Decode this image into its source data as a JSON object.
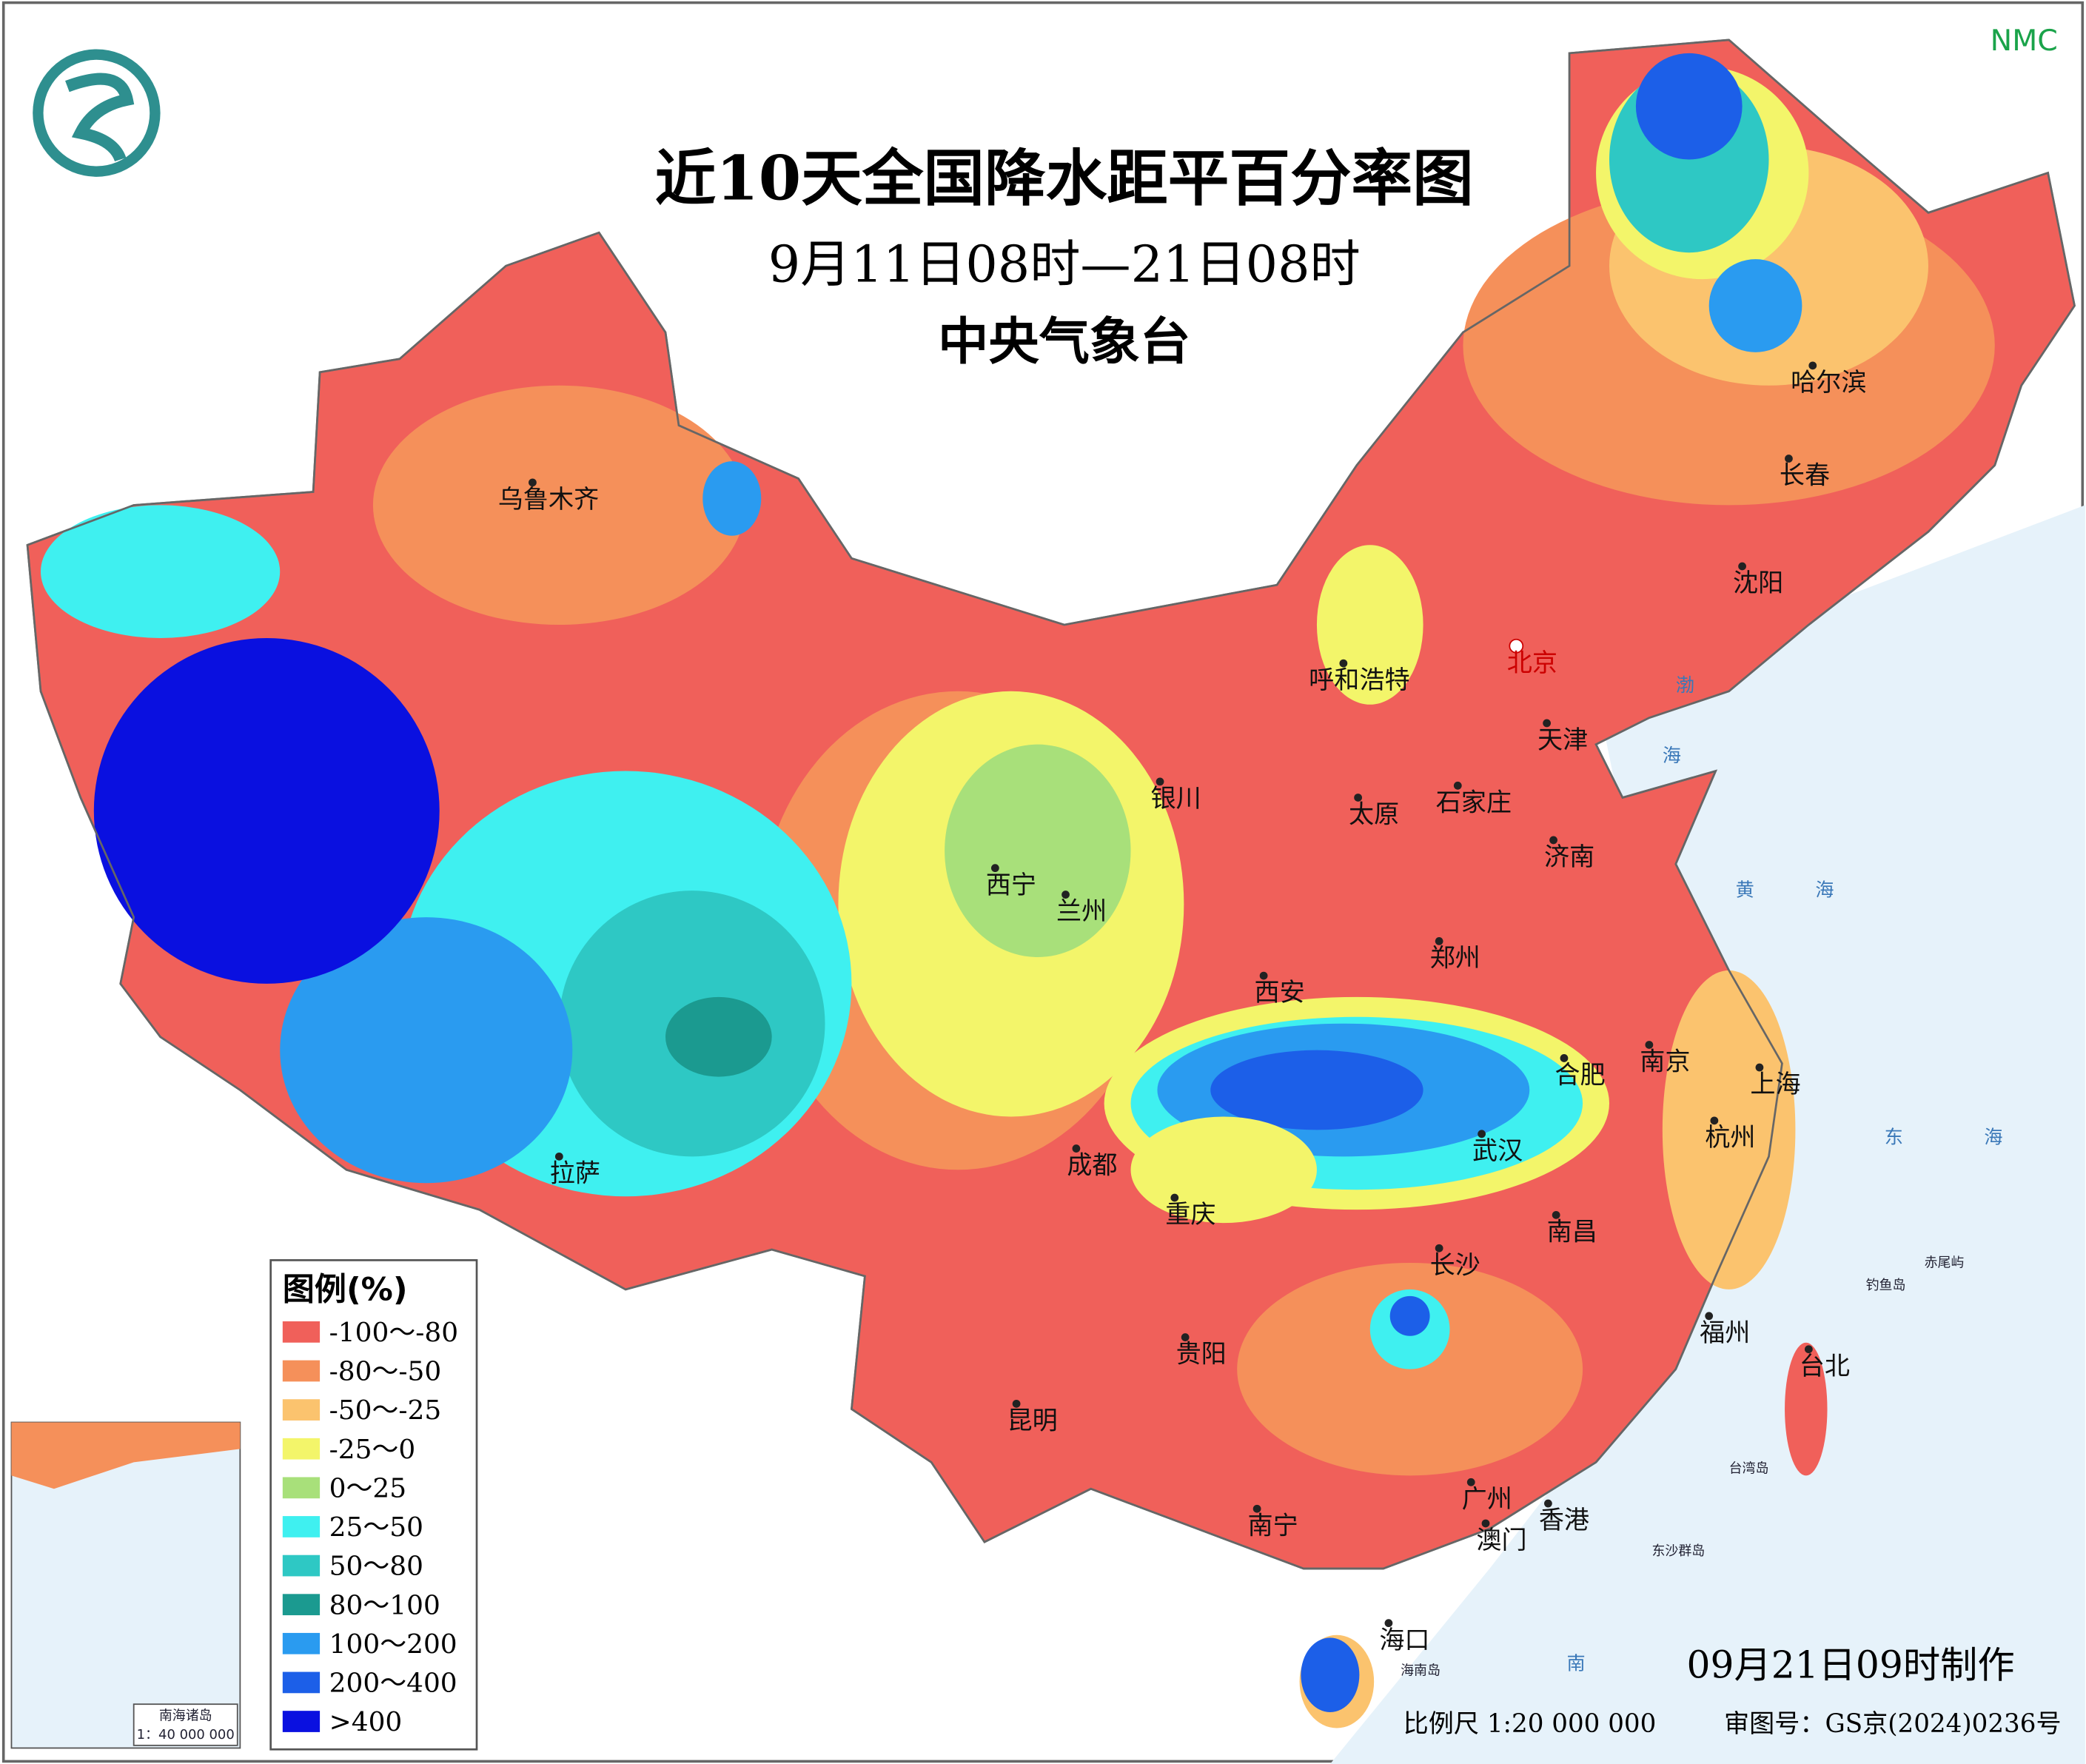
{
  "header": {
    "title": "近10天全国降水距平百分率图",
    "subtitle": "9月11日08时—21日08时",
    "organization": "中央气象台",
    "corner_mark": "NMC"
  },
  "legend": {
    "title": "图例(%)",
    "items": [
      {
        "label": "-100～-80",
        "color": "#f0605a"
      },
      {
        "label": "-80～-50",
        "color": "#f5905a"
      },
      {
        "label": "-50～-25",
        "color": "#fbc36e"
      },
      {
        "label": "-25～0",
        "color": "#f3f56a"
      },
      {
        "label": "0～25",
        "color": "#a8e07a"
      },
      {
        "label": "25～50",
        "color": "#3ff0f0"
      },
      {
        "label": "50～80",
        "color": "#2ec8c4"
      },
      {
        "label": "80～100",
        "color": "#1b9a90"
      },
      {
        "label": "100～200",
        "color": "#2a9bf0"
      },
      {
        "label": "200～400",
        "color": "#1c5fe8"
      },
      {
        "label": ">400",
        "color": "#0a10e0"
      }
    ]
  },
  "cities": [
    "乌鲁木齐",
    "哈尔滨",
    "长春",
    "沈阳",
    "北京",
    "天津",
    "呼和浩特",
    "石家庄",
    "太原",
    "济南",
    "银川",
    "西宁",
    "兰州",
    "郑州",
    "西安",
    "合肥",
    "南京",
    "上海",
    "杭州",
    "武汉",
    "成都",
    "拉萨",
    "重庆",
    "长沙",
    "南昌",
    "贵阳",
    "福州",
    "台北",
    "昆明",
    "广州",
    "香港",
    "澳门",
    "南宁",
    "海口"
  ],
  "seas": [
    "渤",
    "海",
    "黄",
    "海",
    "东",
    "海",
    "南"
  ],
  "islands": [
    "钓鱼岛",
    "赤尾屿",
    "台湾岛",
    "东沙群岛",
    "海南岛"
  ],
  "inset": {
    "title": "南海诸岛",
    "scale": "1：40 000 000"
  },
  "footer": {
    "made_time": "09月21日09时制作",
    "scale": "比例尺  1:20 000 000",
    "approval": "审图号：GS京(2024)0236号"
  }
}
